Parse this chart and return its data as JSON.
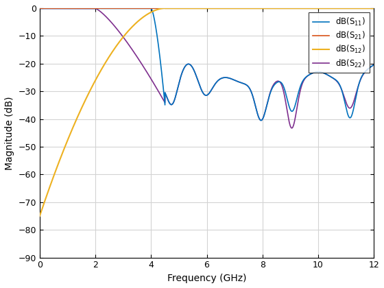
{
  "xlabel": "Frequency (GHz)",
  "ylabel": "Magnitude (dB)",
  "xlim": [
    0,
    12
  ],
  "ylim": [
    -90,
    0
  ],
  "yticks": [
    0,
    -10,
    -20,
    -30,
    -40,
    -50,
    -60,
    -70,
    -80,
    -90
  ],
  "xticks": [
    0,
    2,
    4,
    6,
    8,
    10,
    12
  ],
  "colors": {
    "S11": "#0072BD",
    "S21": "#D95319",
    "S12": "#EDB120",
    "S22": "#7E2F8E"
  },
  "background_color": "#FFFFFF",
  "grid_color": "#D3D3D3",
  "linewidth": 1.2
}
